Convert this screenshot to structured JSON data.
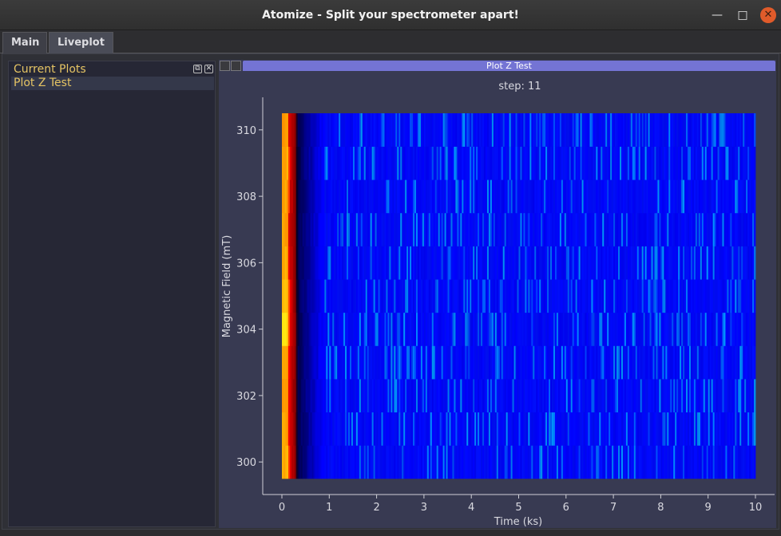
{
  "window": {
    "title": "Atomize - Split your spectrometer apart!",
    "minimize_glyph": "—",
    "maximize_glyph": "□",
    "close_glyph": "✕"
  },
  "tabs": [
    {
      "label": "Main"
    },
    {
      "label": "Liveplot"
    }
  ],
  "left_dock": {
    "title": "Current Plots",
    "float_glyph": "⧉",
    "close_glyph": "✕",
    "items": [
      {
        "label": "Plot Z Test"
      }
    ]
  },
  "plot_dock": {
    "header_label": "Plot Z Test"
  },
  "chart_data": {
    "type": "heatmap",
    "title": "step: 11",
    "xlabel": "Time (ks)",
    "ylabel": "Magnetic Field (mT)",
    "xlim": [
      0,
      10
    ],
    "ylim": [
      300,
      311
    ],
    "x_ticks": [
      0,
      1,
      2,
      3,
      4,
      5,
      6,
      7,
      8,
      9,
      10
    ],
    "y_ticks": [
      300,
      302,
      304,
      306,
      308,
      310
    ],
    "rows": [
      300,
      301,
      302,
      303,
      304,
      305,
      306,
      307,
      308,
      309,
      310
    ],
    "row_peak_intensity": [
      0.85,
      0.8,
      0.8,
      0.85,
      1.0,
      0.9,
      0.85,
      0.8,
      0.8,
      0.85,
      0.8
    ],
    "decay_time_ks": 0.35,
    "colormap": [
      "#000000",
      "#7f0000",
      "#ff3c00",
      "#ffd000",
      "#0000ff",
      "#2a6bff"
    ],
    "grid": false
  }
}
